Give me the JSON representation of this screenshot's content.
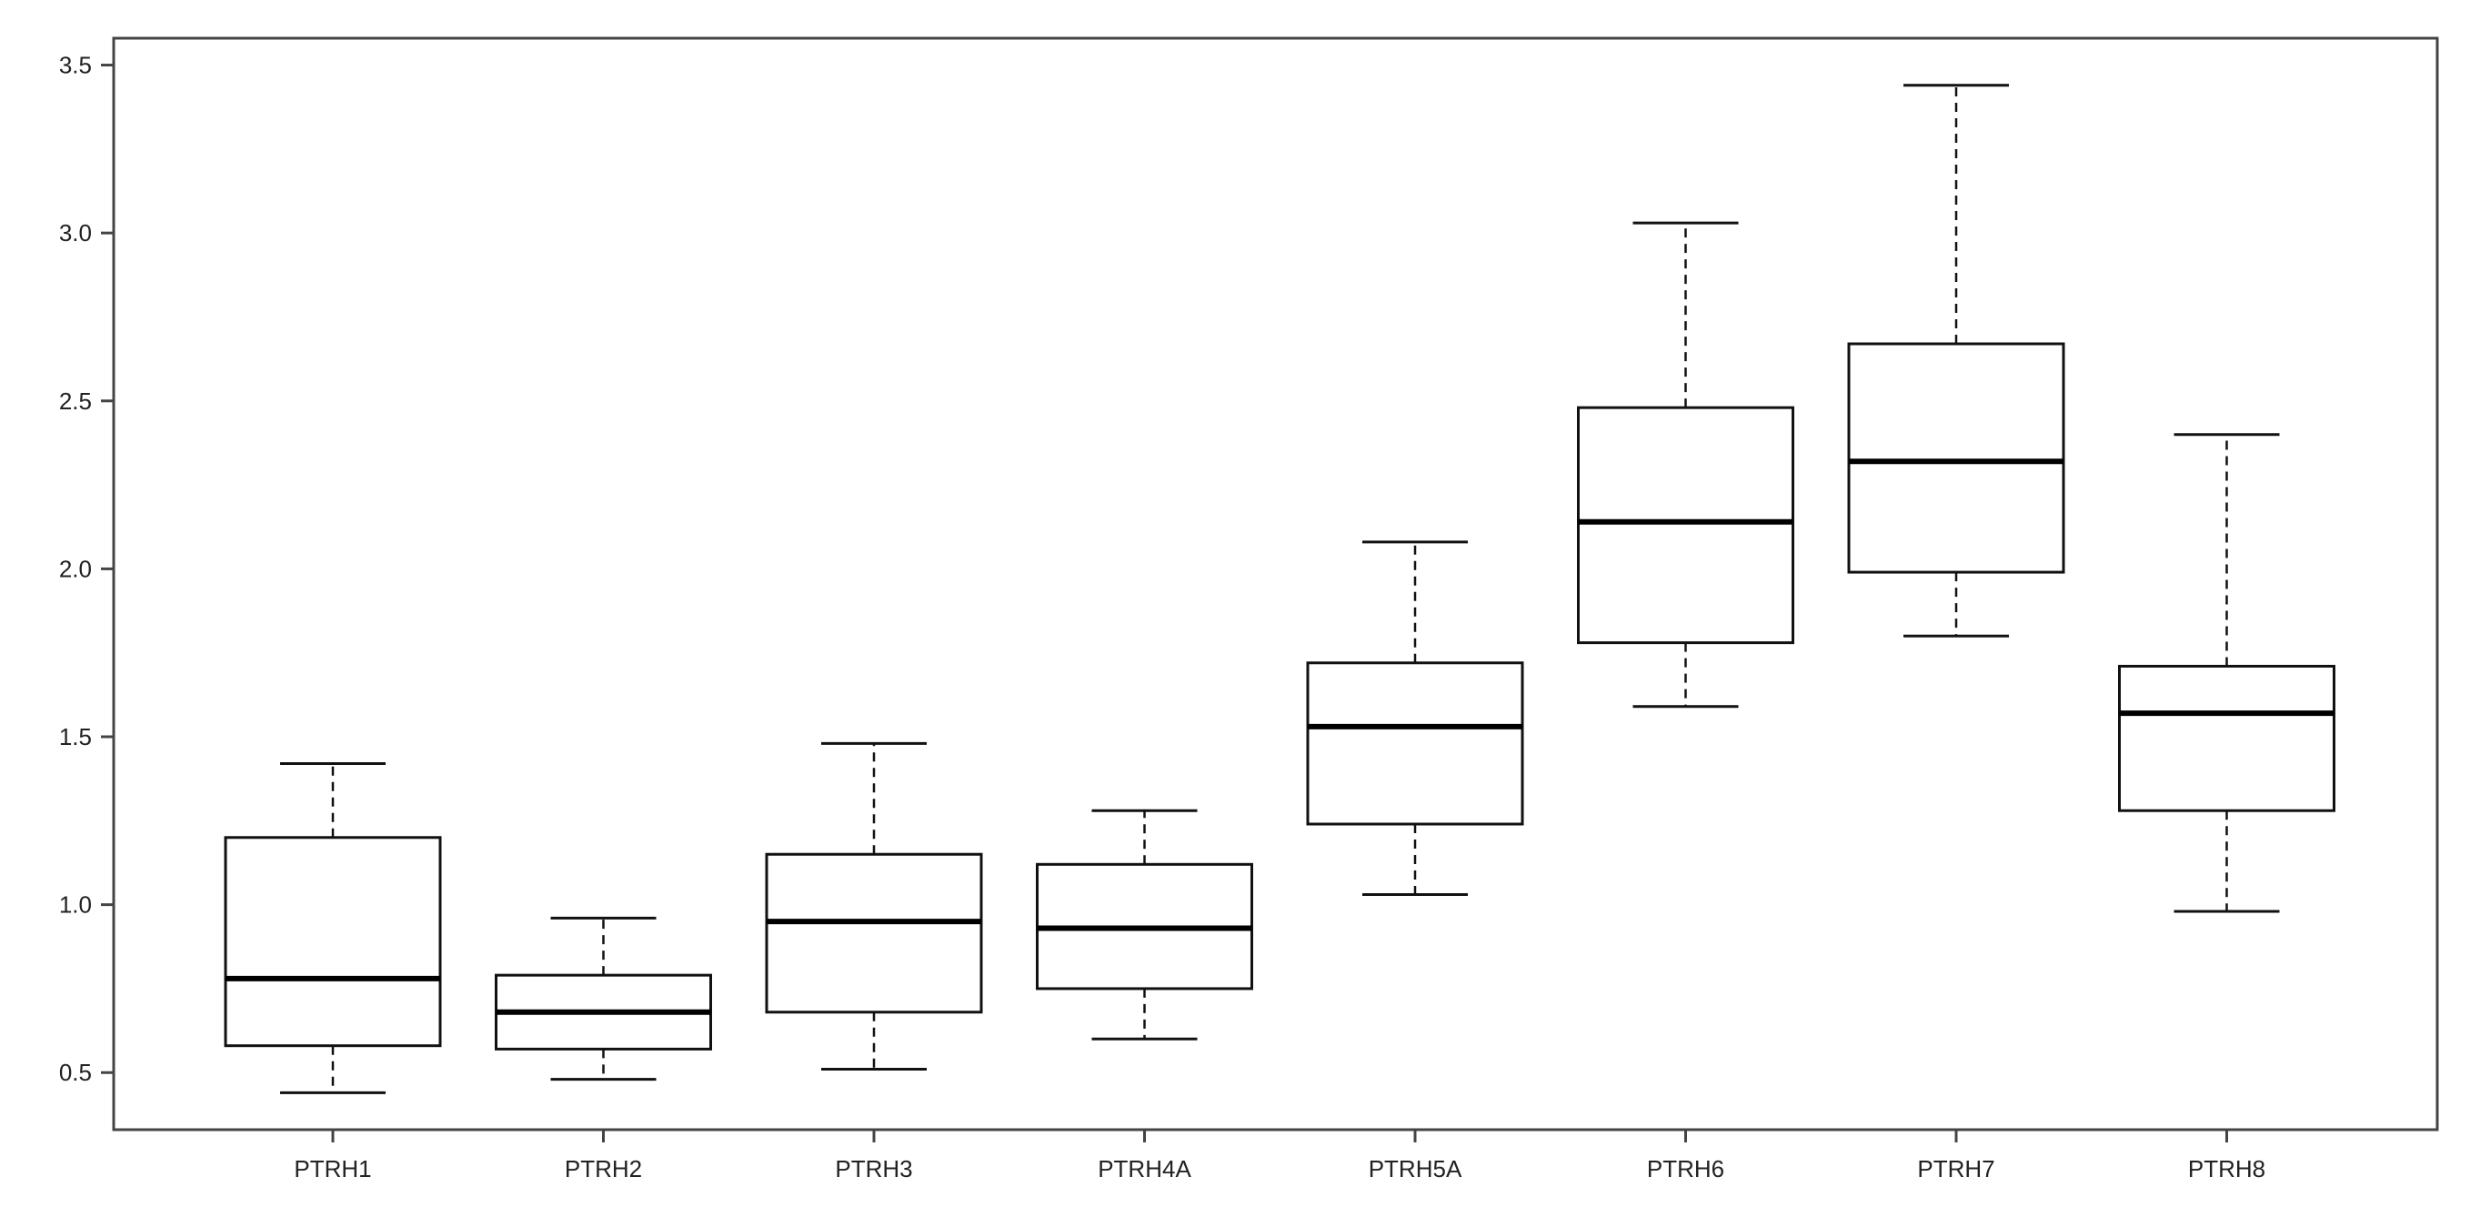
{
  "chart_data": {
    "type": "boxplot",
    "title": "",
    "xlabel": "",
    "ylabel": "",
    "ylim": [
      0.33,
      3.58
    ],
    "yticks": [
      0.5,
      1.0,
      1.5,
      2.0,
      2.5,
      3.0,
      3.5
    ],
    "ytick_labels": [
      "0.5",
      "1.0",
      "1.5",
      "2.0",
      "2.5",
      "3.0",
      "3.5"
    ],
    "grid": false,
    "legend": "none",
    "categories": [
      "PTRH1",
      "PTRH2",
      "PTRH3",
      "PTRH4A",
      "PTRH5A",
      "PTRH6",
      "PTRH7",
      "PTRH8"
    ],
    "boxes": [
      {
        "name": "PTRH1",
        "min": 0.44,
        "q1": 0.58,
        "median": 0.78,
        "q3": 1.2,
        "max": 1.42
      },
      {
        "name": "PTRH2",
        "min": 0.48,
        "q1": 0.57,
        "median": 0.68,
        "q3": 0.79,
        "max": 0.96
      },
      {
        "name": "PTRH3",
        "min": 0.51,
        "q1": 0.68,
        "median": 0.95,
        "q3": 1.15,
        "max": 1.48
      },
      {
        "name": "PTRH4A",
        "min": 0.6,
        "q1": 0.75,
        "median": 0.93,
        "q3": 1.12,
        "max": 1.28
      },
      {
        "name": "PTRH5A",
        "min": 1.03,
        "q1": 1.24,
        "median": 1.53,
        "q3": 1.72,
        "max": 2.08
      },
      {
        "name": "PTRH6",
        "min": 1.59,
        "q1": 1.78,
        "median": 2.14,
        "q3": 2.48,
        "max": 3.03
      },
      {
        "name": "PTRH7",
        "min": 1.8,
        "q1": 1.99,
        "median": 2.32,
        "q3": 2.67,
        "max": 3.44
      },
      {
        "name": "PTRH8",
        "min": 0.98,
        "q1": 1.28,
        "median": 1.57,
        "q3": 1.71,
        "max": 2.4
      }
    ],
    "colors": {
      "box_fill": "#ffffff",
      "box_stroke": "#111111",
      "median": "#000000",
      "whisker": "#111111",
      "axis": "#444444"
    }
  }
}
